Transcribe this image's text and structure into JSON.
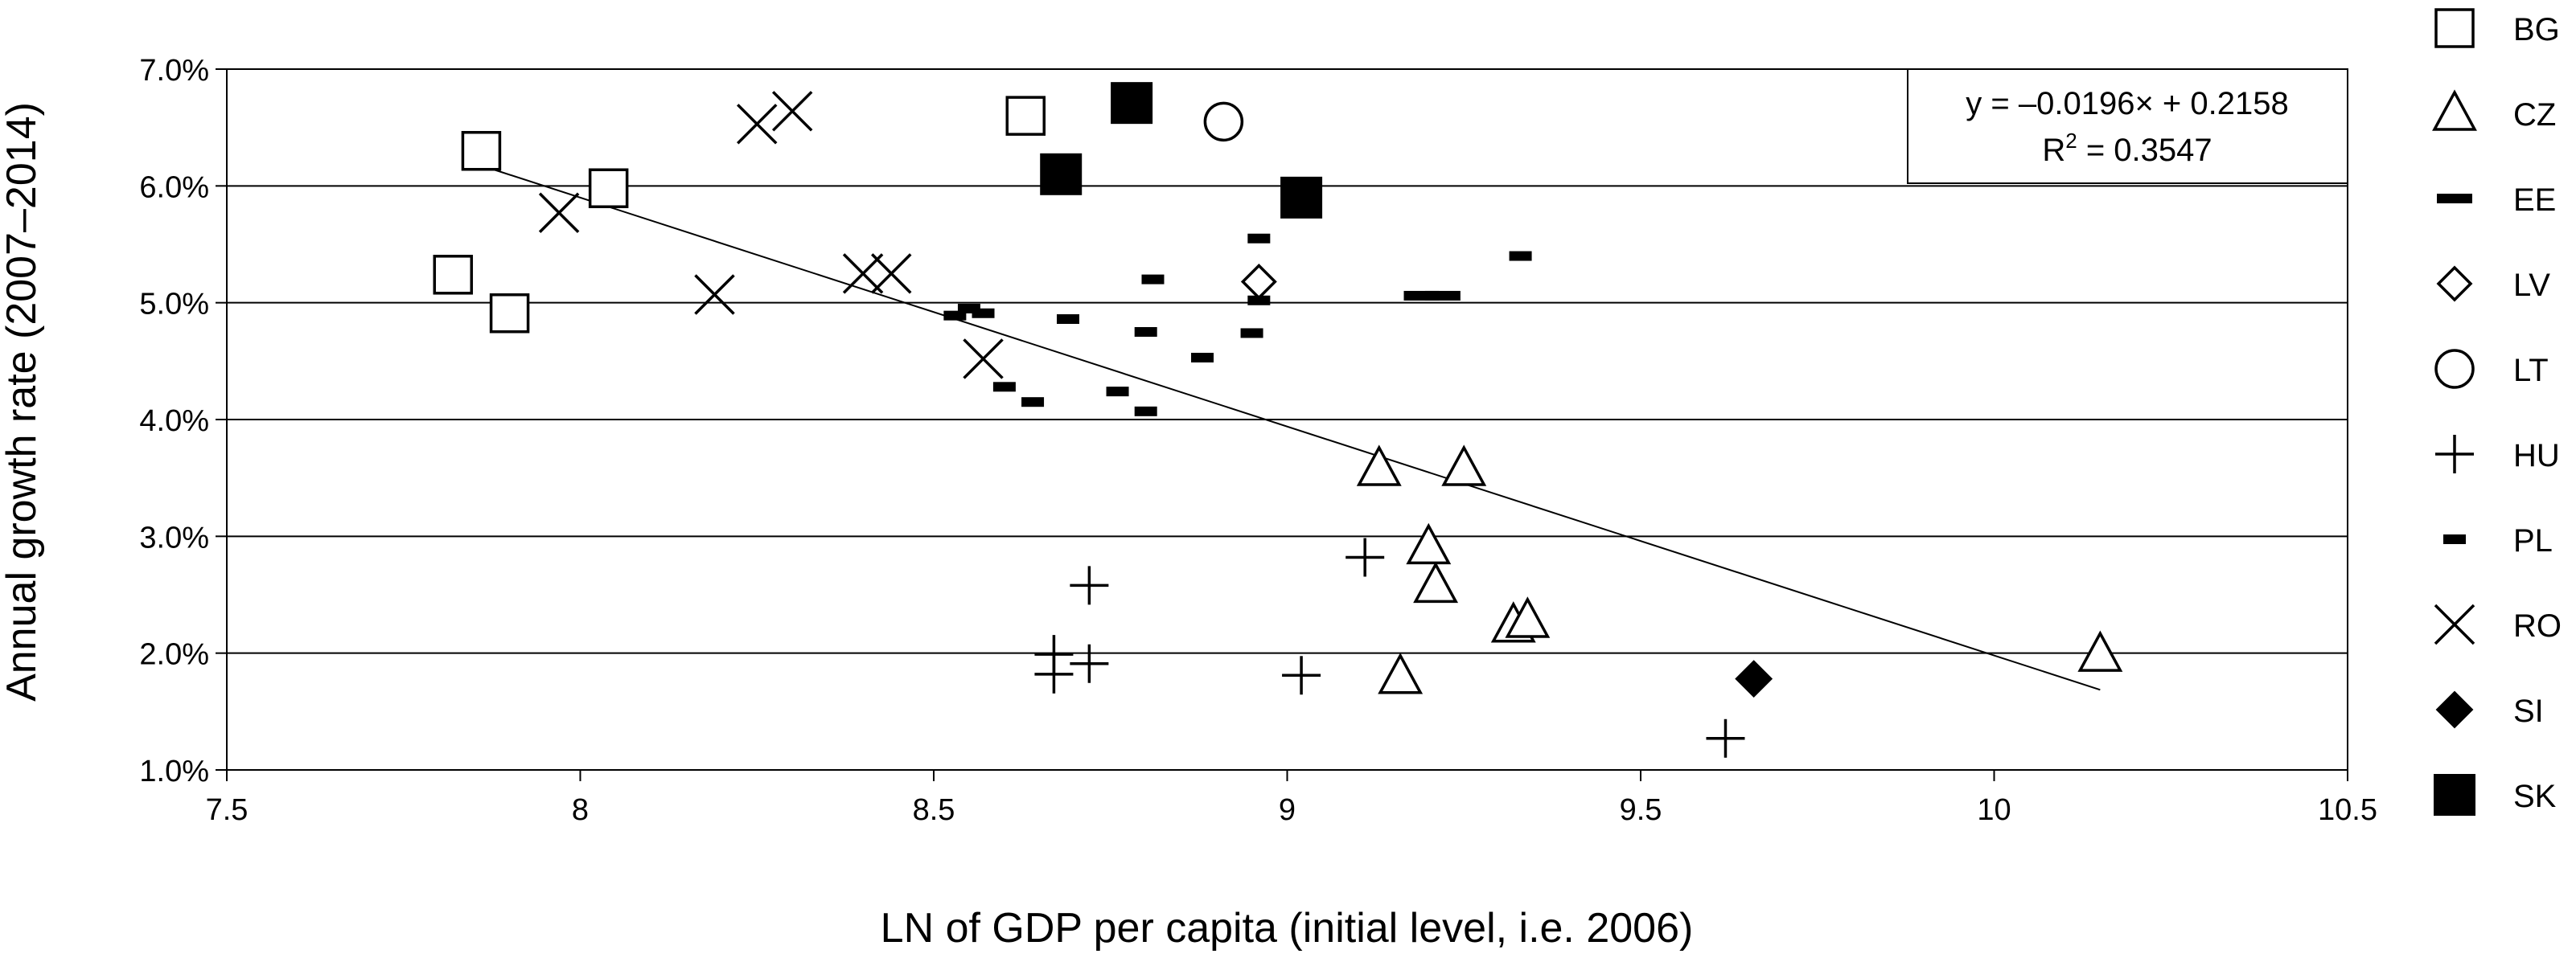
{
  "chart_data": {
    "type": "scatter",
    "xlabel": "LN of GDP per capita (initial level, i.e. 2006)",
    "ylabel": "Annual growth rate (2007–2014)",
    "xlim": [
      7.5,
      10.5
    ],
    "ylim": [
      0.01,
      0.07
    ],
    "x_ticks": [
      7.5,
      8,
      8.5,
      9,
      9.5,
      10,
      10.5
    ],
    "x_tick_labels": [
      "7.5",
      "8",
      "8.5",
      "9",
      "9.5",
      "10",
      "10.5"
    ],
    "y_ticks": [
      0.01,
      0.02,
      0.03,
      0.04,
      0.05,
      0.06,
      0.07
    ],
    "y_tick_labels": [
      "1.0%",
      "2.0%",
      "3.0%",
      "4.0%",
      "5.0%",
      "6.0%",
      "7.0%"
    ],
    "grid": "horizontal",
    "legend_position": "right",
    "equation": {
      "line1": "y = –0.0196× + 0.2158",
      "line2_prefix": "R",
      "line2_sup": "2",
      "line2_suffix": " = 0.3547"
    },
    "trendline": {
      "slope": -0.0196,
      "intercept": 0.2158,
      "x_start": 7.86,
      "x_end": 10.15
    },
    "series": [
      {
        "name": "BG",
        "marker": "square-open",
        "points": [
          [
            7.86,
            0.063
          ],
          [
            8.04,
            0.0598
          ],
          [
            7.82,
            0.0524
          ],
          [
            7.9,
            0.0491
          ],
          [
            8.63,
            0.066
          ]
        ]
      },
      {
        "name": "CZ",
        "marker": "triangle-open",
        "points": [
          [
            9.13,
            0.0358
          ],
          [
            9.25,
            0.0358
          ],
          [
            9.2,
            0.0291
          ],
          [
            9.21,
            0.0258
          ],
          [
            9.32,
            0.0224
          ],
          [
            9.34,
            0.0228
          ],
          [
            9.16,
            0.018
          ],
          [
            10.15,
            0.0199
          ]
        ]
      },
      {
        "name": "EE",
        "marker": "dash-wide",
        "points": [
          [
            9.19,
            0.0506
          ],
          [
            9.22,
            0.0506
          ]
        ]
      },
      {
        "name": "LV",
        "marker": "diamond-open",
        "points": [
          [
            8.96,
            0.0518
          ]
        ]
      },
      {
        "name": "LT",
        "marker": "circle-open",
        "points": [
          [
            8.91,
            0.0655
          ]
        ]
      },
      {
        "name": "HU",
        "marker": "plus",
        "points": [
          [
            8.72,
            0.0258
          ],
          [
            9.11,
            0.0282
          ],
          [
            8.67,
            0.0199
          ],
          [
            8.72,
            0.0191
          ],
          [
            8.67,
            0.0182
          ],
          [
            9.02,
            0.0181
          ],
          [
            9.62,
            0.0127
          ]
        ]
      },
      {
        "name": "PL",
        "marker": "dash",
        "points": [
          [
            8.96,
            0.0555
          ],
          [
            9.33,
            0.054
          ],
          [
            8.81,
            0.052
          ],
          [
            8.96,
            0.0502
          ],
          [
            8.53,
            0.0489
          ],
          [
            8.55,
            0.0495
          ],
          [
            8.57,
            0.0491
          ],
          [
            8.69,
            0.0486
          ],
          [
            8.8,
            0.0475
          ],
          [
            8.95,
            0.0474
          ],
          [
            8.88,
            0.0453
          ],
          [
            8.6,
            0.0428
          ],
          [
            8.64,
            0.0415
          ],
          [
            8.76,
            0.0424
          ],
          [
            8.8,
            0.0407
          ]
        ]
      },
      {
        "name": "RO",
        "marker": "x",
        "points": [
          [
            8.25,
            0.0653
          ],
          [
            8.3,
            0.0664
          ],
          [
            7.97,
            0.0577
          ],
          [
            8.19,
            0.0507
          ],
          [
            8.4,
            0.0525
          ],
          [
            8.44,
            0.0525
          ],
          [
            8.57,
            0.0452
          ]
        ]
      },
      {
        "name": "SI",
        "marker": "diamond-filled",
        "points": [
          [
            9.66,
            0.0178
          ]
        ]
      },
      {
        "name": "SK",
        "marker": "square-filled",
        "points": [
          [
            8.78,
            0.0671
          ],
          [
            8.68,
            0.061
          ],
          [
            9.02,
            0.059
          ]
        ]
      }
    ]
  }
}
